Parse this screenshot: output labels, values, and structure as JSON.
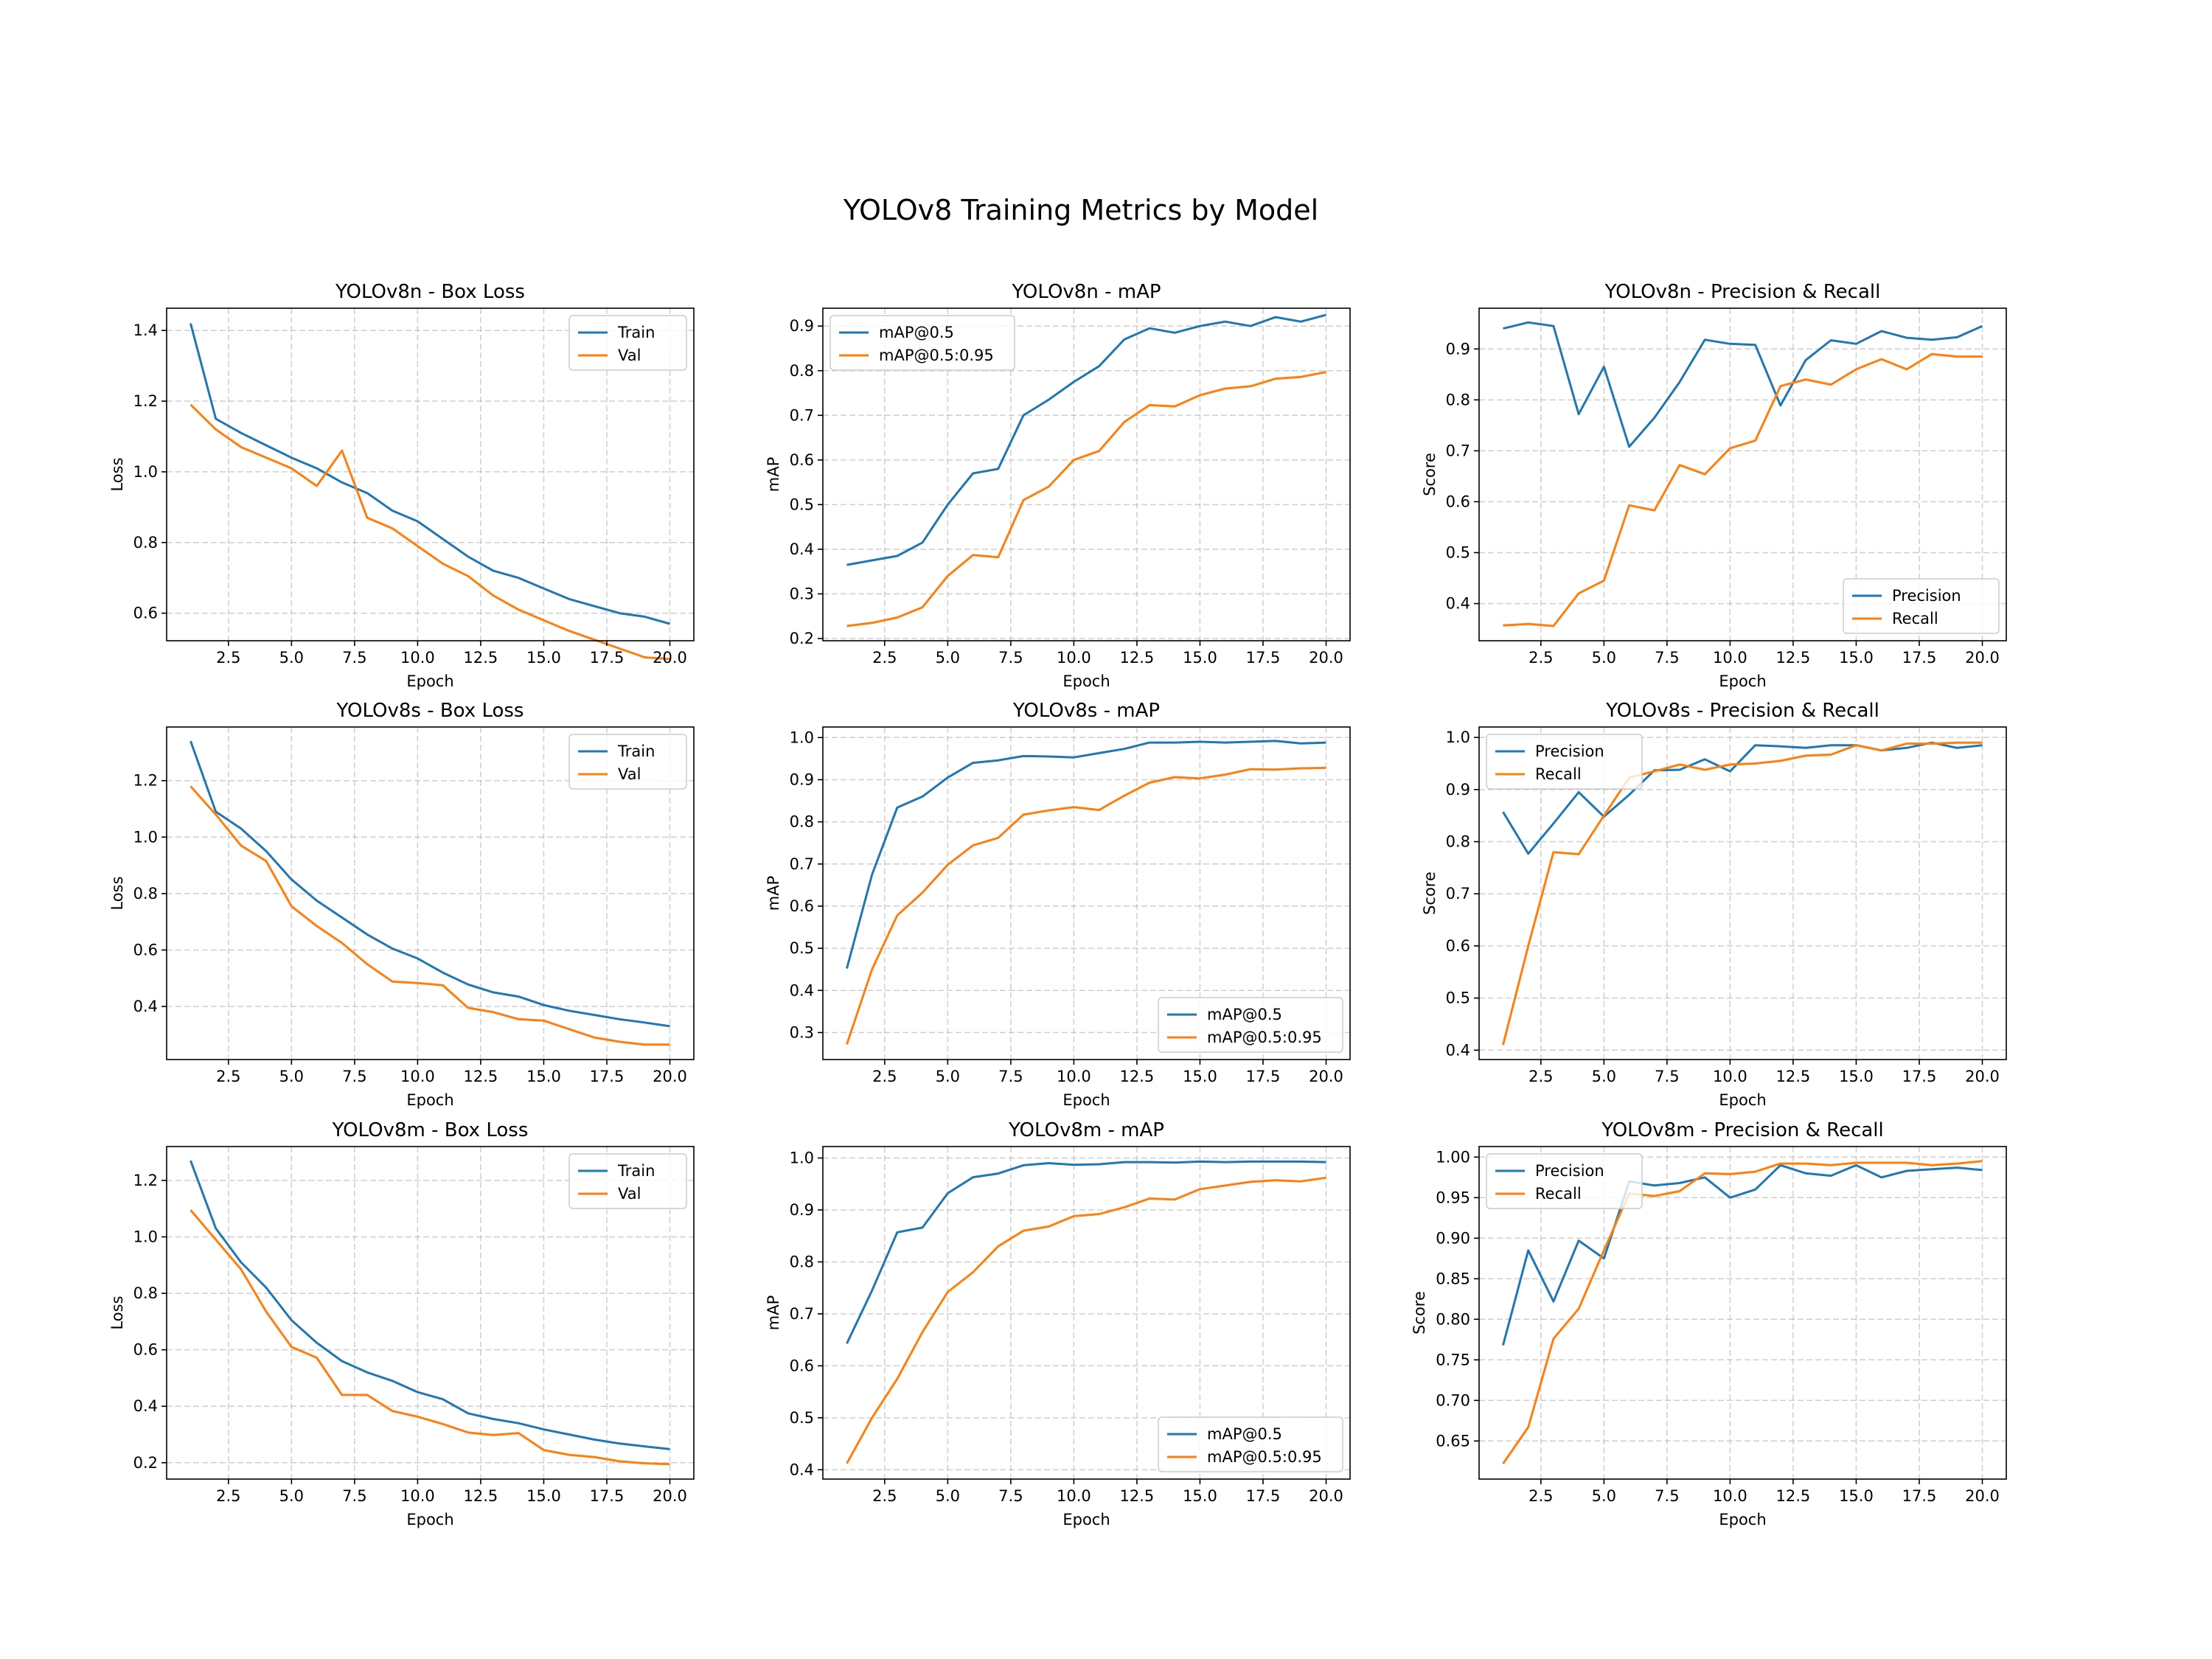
{
  "figure": {
    "title": "YOLOv8 Training Metrics by Model"
  },
  "colors": {
    "series1": "#1f77b4",
    "series2": "#ff7f0e"
  },
  "chart_data": [
    {
      "type": "line",
      "title": "YOLOv8n - Box Loss",
      "xlabel": "Epoch",
      "ylabel": "Loss",
      "xlim": [
        0.05,
        20.95
      ],
      "ylim": [
        0.522,
        1.463
      ],
      "xticks": [
        2.5,
        5.0,
        7.5,
        10.0,
        12.5,
        15.0,
        17.5,
        20.0
      ],
      "xtick_labels": [
        "2.5",
        "5.0",
        "7.5",
        "10.0",
        "12.5",
        "15.0",
        "17.5",
        "20.0"
      ],
      "yticks": [
        0.6,
        0.8,
        1.0,
        1.2,
        1.4
      ],
      "ytick_labels": [
        "0.6",
        "0.8",
        "1.0",
        "1.2",
        "1.4"
      ],
      "legend": "upper right",
      "grid": true,
      "x": [
        1,
        2,
        3,
        4,
        5,
        6,
        7,
        8,
        9,
        10,
        11,
        12,
        13,
        14,
        15,
        16,
        17,
        18,
        19,
        20
      ],
      "series": [
        {
          "name": "Train",
          "values": [
            1.42,
            1.15,
            1.11,
            1.075,
            1.04,
            1.01,
            0.97,
            0.94,
            0.89,
            0.86,
            0.81,
            0.76,
            0.72,
            0.7,
            0.67,
            0.64,
            0.62,
            0.6,
            0.59,
            0.57
          ]
        },
        {
          "name": "Val",
          "values": [
            1.19,
            1.12,
            1.07,
            1.04,
            1.01,
            0.96,
            1.06,
            0.87,
            0.84,
            0.79,
            0.74,
            0.705,
            0.65,
            0.61,
            0.58,
            0.55,
            0.525,
            0.5,
            0.475,
            0.47
          ]
        }
      ]
    },
    {
      "type": "line",
      "title": "YOLOv8n - mAP",
      "xlabel": "Epoch",
      "ylabel": "mAP",
      "xlim": [
        0.05,
        20.95
      ],
      "ylim": [
        0.195,
        0.94
      ],
      "xticks": [
        2.5,
        5.0,
        7.5,
        10.0,
        12.5,
        15.0,
        17.5,
        20.0
      ],
      "xtick_labels": [
        "2.5",
        "5.0",
        "7.5",
        "10.0",
        "12.5",
        "15.0",
        "17.5",
        "20.0"
      ],
      "yticks": [
        0.2,
        0.3,
        0.4,
        0.5,
        0.6,
        0.7,
        0.8,
        0.9
      ],
      "ytick_labels": [
        "0.2",
        "0.3",
        "0.4",
        "0.5",
        "0.6",
        "0.7",
        "0.8",
        "0.9"
      ],
      "legend": "upper left",
      "grid": true,
      "x": [
        1,
        2,
        3,
        4,
        5,
        6,
        7,
        8,
        9,
        10,
        11,
        12,
        13,
        14,
        15,
        16,
        17,
        18,
        19,
        20
      ],
      "series": [
        {
          "name": "mAP@0.5",
          "values": [
            0.365,
            0.375,
            0.385,
            0.415,
            0.5,
            0.57,
            0.58,
            0.7,
            0.735,
            0.775,
            0.81,
            0.87,
            0.895,
            0.885,
            0.9,
            0.91,
            0.9,
            0.92,
            0.91,
            0.925
          ]
        },
        {
          "name": "mAP@0.5:0.95",
          "values": [
            0.228,
            0.235,
            0.247,
            0.27,
            0.34,
            0.387,
            0.382,
            0.51,
            0.54,
            0.6,
            0.62,
            0.685,
            0.723,
            0.72,
            0.745,
            0.76,
            0.765,
            0.782,
            0.786,
            0.797
          ]
        }
      ]
    },
    {
      "type": "line",
      "title": "YOLOv8n - Precision & Recall",
      "xlabel": "Epoch",
      "ylabel": "Score",
      "xlim": [
        0.05,
        20.95
      ],
      "ylim": [
        0.327,
        0.98
      ],
      "xticks": [
        2.5,
        5.0,
        7.5,
        10.0,
        12.5,
        15.0,
        17.5,
        20.0
      ],
      "xtick_labels": [
        "2.5",
        "5.0",
        "7.5",
        "10.0",
        "12.5",
        "15.0",
        "17.5",
        "20.0"
      ],
      "yticks": [
        0.4,
        0.5,
        0.6,
        0.7,
        0.8,
        0.9
      ],
      "ytick_labels": [
        "0.4",
        "0.5",
        "0.6",
        "0.7",
        "0.8",
        "0.9"
      ],
      "legend": "lower right",
      "grid": true,
      "x": [
        1,
        2,
        3,
        4,
        5,
        6,
        7,
        8,
        9,
        10,
        11,
        12,
        13,
        14,
        15,
        16,
        17,
        18,
        19,
        20
      ],
      "series": [
        {
          "name": "Precision",
          "values": [
            0.94,
            0.952,
            0.945,
            0.772,
            0.865,
            0.708,
            0.765,
            0.835,
            0.918,
            0.91,
            0.908,
            0.789,
            0.878,
            0.917,
            0.91,
            0.935,
            0.922,
            0.918,
            0.923,
            0.945
          ]
        },
        {
          "name": "Recall",
          "values": [
            0.357,
            0.36,
            0.356,
            0.42,
            0.445,
            0.593,
            0.583,
            0.672,
            0.654,
            0.705,
            0.72,
            0.827,
            0.84,
            0.83,
            0.86,
            0.88,
            0.86,
            0.89,
            0.885,
            0.885
          ]
        }
      ]
    },
    {
      "type": "line",
      "title": "YOLOv8s - Box Loss",
      "xlabel": "Epoch",
      "ylabel": "Loss",
      "xlim": [
        0.05,
        20.95
      ],
      "ylim": [
        0.212,
        1.39
      ],
      "xticks": [
        2.5,
        5.0,
        7.5,
        10.0,
        12.5,
        15.0,
        17.5,
        20.0
      ],
      "xtick_labels": [
        "2.5",
        "5.0",
        "7.5",
        "10.0",
        "12.5",
        "15.0",
        "17.5",
        "20.0"
      ],
      "yticks": [
        0.4,
        0.6,
        0.8,
        1.0,
        1.2
      ],
      "ytick_labels": [
        "0.4",
        "0.6",
        "0.8",
        "1.0",
        "1.2"
      ],
      "legend": "upper right",
      "grid": true,
      "x": [
        1,
        2,
        3,
        4,
        5,
        6,
        7,
        8,
        9,
        10,
        11,
        12,
        13,
        14,
        15,
        16,
        17,
        18,
        19,
        20
      ],
      "series": [
        {
          "name": "Train",
          "values": [
            1.34,
            1.09,
            1.03,
            0.95,
            0.85,
            0.775,
            0.715,
            0.655,
            0.605,
            0.57,
            0.52,
            0.478,
            0.45,
            0.435,
            0.405,
            0.385,
            0.37,
            0.355,
            0.343,
            0.33
          ]
        },
        {
          "name": "Val",
          "values": [
            1.18,
            1.08,
            0.97,
            0.915,
            0.755,
            0.685,
            0.625,
            0.55,
            0.488,
            0.483,
            0.475,
            0.395,
            0.38,
            0.355,
            0.35,
            0.32,
            0.29,
            0.275,
            0.265,
            0.265
          ]
        }
      ]
    },
    {
      "type": "line",
      "title": "YOLOv8s - mAP",
      "xlabel": "Epoch",
      "ylabel": "mAP",
      "xlim": [
        0.05,
        20.95
      ],
      "ylim": [
        0.236,
        1.025
      ],
      "xticks": [
        2.5,
        5.0,
        7.5,
        10.0,
        12.5,
        15.0,
        17.5,
        20.0
      ],
      "xtick_labels": [
        "2.5",
        "5.0",
        "7.5",
        "10.0",
        "12.5",
        "15.0",
        "17.5",
        "20.0"
      ],
      "yticks": [
        0.3,
        0.4,
        0.5,
        0.6,
        0.7,
        0.8,
        0.9,
        1.0
      ],
      "ytick_labels": [
        "0.3",
        "0.4",
        "0.5",
        "0.6",
        "0.7",
        "0.8",
        "0.9",
        "1.0"
      ],
      "legend": "lower right",
      "grid": true,
      "x": [
        1,
        2,
        3,
        4,
        5,
        6,
        7,
        8,
        9,
        10,
        11,
        12,
        13,
        14,
        15,
        16,
        17,
        18,
        19,
        20
      ],
      "series": [
        {
          "name": "mAP@0.5",
          "values": [
            0.452,
            0.675,
            0.834,
            0.86,
            0.905,
            0.94,
            0.946,
            0.956,
            0.955,
            0.953,
            0.963,
            0.973,
            0.988,
            0.988,
            0.99,
            0.988,
            0.99,
            0.992,
            0.986,
            0.988
          ]
        },
        {
          "name": "mAP@0.5:0.95",
          "values": [
            0.272,
            0.45,
            0.578,
            0.632,
            0.698,
            0.744,
            0.762,
            0.817,
            0.827,
            0.835,
            0.828,
            0.862,
            0.893,
            0.906,
            0.903,
            0.912,
            0.925,
            0.924,
            0.927,
            0.928
          ]
        }
      ]
    },
    {
      "type": "line",
      "title": "YOLOv8s - Precision & Recall",
      "xlabel": "Epoch",
      "ylabel": "Score",
      "xlim": [
        0.05,
        20.95
      ],
      "ylim": [
        0.382,
        1.02
      ],
      "xticks": [
        2.5,
        5.0,
        7.5,
        10.0,
        12.5,
        15.0,
        17.5,
        20.0
      ],
      "xtick_labels": [
        "2.5",
        "5.0",
        "7.5",
        "10.0",
        "12.5",
        "15.0",
        "17.5",
        "20.0"
      ],
      "yticks": [
        0.4,
        0.5,
        0.6,
        0.7,
        0.8,
        0.9,
        1.0
      ],
      "ytick_labels": [
        "0.4",
        "0.5",
        "0.6",
        "0.7",
        "0.8",
        "0.9",
        "1.0"
      ],
      "legend": "upper left",
      "grid": true,
      "x": [
        1,
        2,
        3,
        4,
        5,
        6,
        7,
        8,
        9,
        10,
        11,
        12,
        13,
        14,
        15,
        16,
        17,
        18,
        19,
        20
      ],
      "series": [
        {
          "name": "Precision",
          "values": [
            0.857,
            0.777,
            0.835,
            0.895,
            0.848,
            0.89,
            0.937,
            0.938,
            0.958,
            0.935,
            0.985,
            0.983,
            0.98,
            0.985,
            0.985,
            0.975,
            0.98,
            0.99,
            0.98,
            0.985
          ]
        },
        {
          "name": "Recall",
          "values": [
            0.41,
            0.6,
            0.78,
            0.776,
            0.85,
            0.923,
            0.935,
            0.948,
            0.938,
            0.948,
            0.95,
            0.955,
            0.965,
            0.967,
            0.985,
            0.975,
            0.988,
            0.988,
            0.99,
            0.99
          ]
        }
      ]
    },
    {
      "type": "line",
      "title": "YOLOv8m - Box Loss",
      "xlabel": "Epoch",
      "ylabel": "Loss",
      "xlim": [
        0.05,
        20.95
      ],
      "ylim": [
        0.142,
        1.32
      ],
      "xticks": [
        2.5,
        5.0,
        7.5,
        10.0,
        12.5,
        15.0,
        17.5,
        20.0
      ],
      "xtick_labels": [
        "2.5",
        "5.0",
        "7.5",
        "10.0",
        "12.5",
        "15.0",
        "17.5",
        "20.0"
      ],
      "yticks": [
        0.2,
        0.4,
        0.6,
        0.8,
        1.0,
        1.2
      ],
      "ytick_labels": [
        "0.2",
        "0.4",
        "0.6",
        "0.8",
        "1.0",
        "1.2"
      ],
      "legend": "upper right",
      "grid": true,
      "x": [
        1,
        2,
        3,
        4,
        5,
        6,
        7,
        8,
        9,
        10,
        11,
        12,
        13,
        14,
        15,
        16,
        17,
        18,
        19,
        20
      ],
      "series": [
        {
          "name": "Train",
          "values": [
            1.27,
            1.03,
            0.91,
            0.82,
            0.705,
            0.625,
            0.56,
            0.52,
            0.49,
            0.45,
            0.425,
            0.375,
            0.355,
            0.34,
            0.318,
            0.3,
            0.282,
            0.268,
            0.258,
            0.248
          ]
        },
        {
          "name": "Val",
          "values": [
            1.095,
            0.99,
            0.885,
            0.735,
            0.61,
            0.572,
            0.44,
            0.44,
            0.383,
            0.363,
            0.337,
            0.307,
            0.298,
            0.305,
            0.245,
            0.228,
            0.22,
            0.205,
            0.198,
            0.195
          ]
        }
      ]
    },
    {
      "type": "line",
      "title": "YOLOv8m - mAP",
      "xlabel": "Epoch",
      "ylabel": "mAP",
      "xlim": [
        0.05,
        20.95
      ],
      "ylim": [
        0.382,
        1.022
      ],
      "xticks": [
        2.5,
        5.0,
        7.5,
        10.0,
        12.5,
        15.0,
        17.5,
        20.0
      ],
      "xtick_labels": [
        "2.5",
        "5.0",
        "7.5",
        "10.0",
        "12.5",
        "15.0",
        "17.5",
        "20.0"
      ],
      "yticks": [
        0.4,
        0.5,
        0.6,
        0.7,
        0.8,
        0.9,
        1.0
      ],
      "ytick_labels": [
        "0.4",
        "0.5",
        "0.6",
        "0.7",
        "0.8",
        "0.9",
        "1.0"
      ],
      "legend": "lower right",
      "grid": true,
      "x": [
        1,
        2,
        3,
        4,
        5,
        6,
        7,
        8,
        9,
        10,
        11,
        12,
        13,
        14,
        15,
        16,
        17,
        18,
        19,
        20
      ],
      "series": [
        {
          "name": "mAP@0.5",
          "values": [
            0.643,
            0.745,
            0.857,
            0.866,
            0.932,
            0.963,
            0.97,
            0.986,
            0.99,
            0.987,
            0.988,
            0.992,
            0.992,
            0.991,
            0.993,
            0.992,
            0.993,
            0.993,
            0.993,
            0.992
          ]
        },
        {
          "name": "mAP@0.5:0.95",
          "values": [
            0.412,
            0.5,
            0.575,
            0.665,
            0.742,
            0.78,
            0.83,
            0.86,
            0.868,
            0.888,
            0.892,
            0.905,
            0.922,
            0.92,
            0.94,
            0.947,
            0.954,
            0.957,
            0.955,
            0.962
          ]
        }
      ]
    },
    {
      "type": "line",
      "title": "YOLOv8m - Precision & Recall",
      "xlabel": "Epoch",
      "ylabel": "Score",
      "xlim": [
        0.05,
        20.95
      ],
      "ylim": [
        0.603,
        1.013
      ],
      "xticks": [
        2.5,
        5.0,
        7.5,
        10.0,
        12.5,
        15.0,
        17.5,
        20.0
      ],
      "xtick_labels": [
        "2.5",
        "5.0",
        "7.5",
        "10.0",
        "12.5",
        "15.0",
        "17.5",
        "20.0"
      ],
      "yticks": [
        0.65,
        0.7,
        0.75,
        0.8,
        0.85,
        0.9,
        0.95,
        1.0
      ],
      "ytick_labels": [
        "0.65",
        "0.70",
        "0.75",
        "0.80",
        "0.85",
        "0.90",
        "0.95",
        "1.00"
      ],
      "legend": "upper left",
      "grid": true,
      "x": [
        1,
        2,
        3,
        4,
        5,
        6,
        7,
        8,
        9,
        10,
        11,
        12,
        13,
        14,
        15,
        16,
        17,
        18,
        19,
        20
      ],
      "series": [
        {
          "name": "Precision",
          "values": [
            0.768,
            0.885,
            0.822,
            0.897,
            0.875,
            0.97,
            0.965,
            0.968,
            0.975,
            0.95,
            0.96,
            0.99,
            0.98,
            0.977,
            0.99,
            0.975,
            0.983,
            0.985,
            0.987,
            0.984
          ]
        },
        {
          "name": "Recall",
          "values": [
            0.622,
            0.667,
            0.776,
            0.813,
            0.885,
            0.955,
            0.952,
            0.958,
            0.98,
            0.979,
            0.982,
            0.992,
            0.992,
            0.99,
            0.993,
            0.993,
            0.993,
            0.99,
            0.992,
            0.995
          ]
        }
      ]
    }
  ]
}
